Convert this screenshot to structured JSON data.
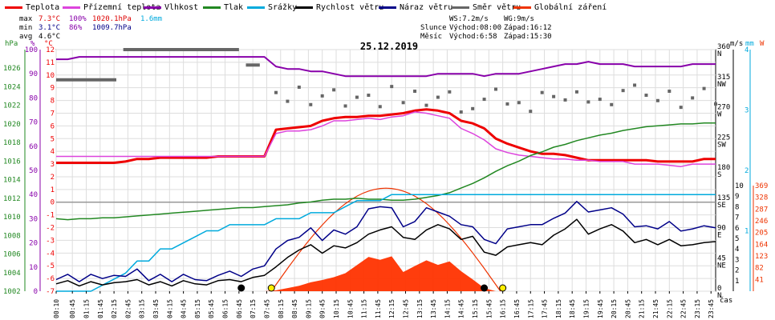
{
  "legend": [
    {
      "label": "Teplota",
      "color": "#ee0000"
    },
    {
      "label": "Přízemní teplota",
      "color": "#dd44dd"
    },
    {
      "label": "Vlhkost",
      "color": "#8800aa"
    },
    {
      "label": "Tlak",
      "color": "#228822"
    },
    {
      "label": "Srážky",
      "color": "#00aadd"
    },
    {
      "label": "Rychlost větru",
      "color": "#000000"
    },
    {
      "label": "Náraz větru",
      "color": "#000088"
    },
    {
      "label": "Směr větru",
      "color": "#666666"
    },
    {
      "label": "Globální záření",
      "color": "#ee3300"
    }
  ],
  "stats": {
    "max_label": "max",
    "max_temp": "7.3°C",
    "max_hum": "100%",
    "max_press": "1020.1hPa",
    "max_rain": "1.6mm",
    "min_label": "min",
    "min_temp": "3.1°C",
    "min_hum": "86%",
    "min_press": "1009.7hPa",
    "avg_label": "avg",
    "avg_temp": "4.6°C"
  },
  "sun": {
    "ws": "WS:7.2m/s",
    "wg": "WG:9m/s",
    "sun_label": "Slunce",
    "sunrise": "Východ:08:00",
    "sunset": "Západ:16:12",
    "moon_label": "Měsíc",
    "moonrise": "Východ:6:58",
    "moonset": "Západ:15:30"
  },
  "chart_data": {
    "type": "line",
    "title": "25.12.2019",
    "xlabel": "čas",
    "x": [
      "00:10",
      "00:35",
      "01:00",
      "01:25",
      "01:50",
      "02:15",
      "02:40",
      "03:05",
      "03:30",
      "03:55",
      "04:20",
      "04:45",
      "05:10",
      "05:35",
      "06:00",
      "06:25",
      "06:50",
      "07:15",
      "07:40",
      "08:05",
      "08:30",
      "08:55",
      "09:20",
      "09:45",
      "10:10",
      "10:35",
      "11:00",
      "11:25",
      "11:50",
      "12:15",
      "12:40",
      "13:05",
      "13:30",
      "13:55",
      "14:20",
      "14:45",
      "15:10",
      "15:35",
      "16:00",
      "16:25",
      "16:50",
      "17:15",
      "17:40",
      "18:05",
      "18:30",
      "18:55",
      "19:20",
      "19:45",
      "20:10",
      "20:35",
      "21:00",
      "21:25",
      "21:50",
      "22:15",
      "22:40",
      "23:05",
      "23:30",
      "23:55"
    ],
    "x_tick_labels": [
      "00:10",
      "00:45",
      "01:15",
      "01:45",
      "02:15",
      "02:45",
      "03:15",
      "03:45",
      "04:15",
      "04:45",
      "05:15",
      "05:45",
      "06:15",
      "06:45",
      "07:15",
      "07:45",
      "08:15",
      "08:45",
      "09:15",
      "09:45",
      "10:15",
      "10:45",
      "11:15",
      "11:45",
      "12:15",
      "12:45",
      "13:15",
      "13:45",
      "14:15",
      "14:45",
      "15:15",
      "15:45",
      "16:15",
      "16:45",
      "17:15",
      "17:45",
      "18:15",
      "18:45",
      "19:15",
      "19:45",
      "20:15",
      "20:45",
      "21:15",
      "21:45",
      "22:15",
      "22:45",
      "23:15",
      "23:45"
    ],
    "axes": {
      "pressure": {
        "unit": "hPa",
        "min": 1002,
        "max": 1028,
        "ticks": [
          1002,
          1004,
          1006,
          1008,
          1010,
          1012,
          1014,
          1016,
          1018,
          1020,
          1022,
          1024,
          1026
        ]
      },
      "humidity": {
        "unit": "%",
        "min": 0,
        "max": 100,
        "ticks": [
          0,
          10,
          20,
          30,
          40,
          50,
          60,
          70,
          80,
          90,
          100
        ]
      },
      "temperature": {
        "unit": "°C",
        "min": -7,
        "max": 12,
        "ticks": [
          -7,
          -6,
          -5,
          -4,
          -3,
          -2,
          -1,
          0,
          1,
          2,
          3,
          4,
          5,
          6,
          7,
          8,
          9,
          10,
          11,
          12
        ]
      },
      "wind_direction": {
        "unit": "",
        "ticks": [
          {
            "v": 0,
            "t": "0"
          },
          {
            "v": 45,
            "t": "45"
          },
          {
            "v": 90,
            "t": "90"
          },
          {
            "v": 135,
            "t": "135"
          },
          {
            "v": 180,
            "t": "180"
          },
          {
            "v": 225,
            "t": "225"
          },
          {
            "v": 270,
            "t": "270"
          },
          {
            "v": 315,
            "t": "315"
          },
          {
            "v": 360,
            "t": "360"
          }
        ],
        "compass": [
          "N",
          "NE",
          "E",
          "SE",
          "S",
          "SW",
          "W",
          "NW",
          "N"
        ]
      },
      "wind_speed": {
        "unit": "m/s",
        "min": 0,
        "max": 10,
        "ticks": [
          1,
          2,
          3,
          4,
          5,
          6,
          7,
          8,
          9,
          10
        ]
      },
      "rain": {
        "unit": "mm",
        "min": 0,
        "max": 4,
        "ticks": [
          1,
          2,
          3,
          4
        ]
      },
      "radiation": {
        "unit": "W",
        "min": 0,
        "max": 369,
        "ticks": [
          41,
          82,
          123,
          164,
          205,
          246,
          287,
          328,
          369
        ]
      }
    },
    "series": [
      {
        "name": "Teplota",
        "color": "#ee0000",
        "axis": "temperature",
        "values": [
          3.1,
          3.1,
          3.1,
          3.1,
          3.1,
          3.1,
          3.2,
          3.4,
          3.4,
          3.5,
          3.5,
          3.5,
          3.5,
          3.5,
          3.6,
          3.6,
          3.6,
          3.6,
          3.6,
          5.7,
          5.8,
          5.9,
          6.0,
          6.4,
          6.6,
          6.7,
          6.7,
          6.8,
          6.8,
          6.9,
          7.0,
          7.2,
          7.3,
          7.2,
          7.0,
          6.4,
          6.2,
          5.8,
          5.0,
          4.6,
          4.3,
          4.0,
          3.8,
          3.8,
          3.7,
          3.5,
          3.3,
          3.3,
          3.3,
          3.3,
          3.3,
          3.3,
          3.2,
          3.2,
          3.2,
          3.2,
          3.4,
          3.4
        ]
      },
      {
        "name": "Přízemní teplota",
        "color": "#dd44dd",
        "axis": "temperature",
        "values": [
          3.6,
          3.6,
          3.6,
          3.6,
          3.6,
          3.6,
          3.6,
          3.6,
          3.6,
          3.6,
          3.6,
          3.6,
          3.6,
          3.6,
          3.6,
          3.6,
          3.6,
          3.6,
          3.6,
          5.4,
          5.6,
          5.6,
          5.7,
          6.0,
          6.4,
          6.4,
          6.5,
          6.6,
          6.5,
          6.7,
          6.8,
          7.1,
          7.0,
          6.8,
          6.6,
          5.8,
          5.4,
          4.9,
          4.2,
          3.9,
          3.7,
          3.6,
          3.5,
          3.4,
          3.4,
          3.3,
          3.3,
          3.2,
          3.2,
          3.2,
          3.0,
          3.0,
          3.0,
          2.9,
          2.8,
          3.0,
          3.0,
          3.0
        ]
      },
      {
        "name": "Vlhkost",
        "color": "#8800aa",
        "axis": "humidity",
        "values": [
          96,
          96,
          97,
          97,
          97,
          97,
          97,
          97,
          97,
          97,
          97,
          97,
          97,
          97,
          97,
          97,
          97,
          97,
          97,
          93,
          92,
          92,
          91,
          91,
          90,
          89,
          89,
          89,
          89,
          89,
          89,
          89,
          89,
          90,
          90,
          90,
          90,
          89,
          90,
          90,
          90,
          91,
          92,
          93,
          94,
          94,
          95,
          94,
          94,
          94,
          93,
          93,
          93,
          93,
          93,
          94,
          94,
          94
        ]
      },
      {
        "name": "Tlak",
        "color": "#228822",
        "axis": "pressure",
        "values": [
          1009.8,
          1009.7,
          1009.8,
          1009.8,
          1009.9,
          1009.9,
          1010.0,
          1010.1,
          1010.2,
          1010.3,
          1010.4,
          1010.5,
          1010.6,
          1010.7,
          1010.8,
          1010.9,
          1011.0,
          1011.0,
          1011.1,
          1011.2,
          1011.3,
          1011.5,
          1011.6,
          1011.8,
          1011.9,
          1011.9,
          1012.0,
          1011.9,
          1011.9,
          1011.8,
          1011.8,
          1011.9,
          1012.1,
          1012.3,
          1012.6,
          1013.1,
          1013.6,
          1014.2,
          1014.9,
          1015.5,
          1016.0,
          1016.6,
          1017.0,
          1017.5,
          1017.8,
          1018.2,
          1018.5,
          1018.8,
          1019.0,
          1019.3,
          1019.5,
          1019.7,
          1019.8,
          1019.9,
          1020.0,
          1020.0,
          1020.1,
          1020.1
        ]
      },
      {
        "name": "Srážky",
        "color": "#00aadd",
        "axis": "rain",
        "values": [
          0,
          0,
          0,
          0,
          0.1,
          0.2,
          0.3,
          0.5,
          0.5,
          0.7,
          0.7,
          0.8,
          0.9,
          1.0,
          1.0,
          1.1,
          1.1,
          1.1,
          1.1,
          1.2,
          1.2,
          1.2,
          1.3,
          1.3,
          1.3,
          1.4,
          1.5,
          1.5,
          1.5,
          1.6,
          1.6,
          1.6,
          1.6,
          1.6,
          1.6,
          1.6,
          1.6,
          1.6,
          1.6,
          1.6,
          1.6,
          1.6,
          1.6,
          1.6,
          1.6,
          1.6,
          1.6,
          1.6,
          1.6,
          1.6,
          1.6,
          1.6,
          1.6,
          1.6,
          1.6,
          1.6,
          1.6,
          1.6
        ]
      },
      {
        "name": "Rychlost větru",
        "color": "#000000",
        "axis": "wind_speed",
        "values": [
          0.7,
          1.0,
          0.5,
          0.9,
          0.6,
          0.8,
          0.9,
          1.1,
          0.6,
          0.9,
          0.5,
          1.0,
          0.7,
          0.6,
          1.0,
          1.1,
          0.9,
          1.3,
          1.5,
          2.3,
          3.2,
          3.9,
          4.4,
          3.6,
          4.3,
          4.1,
          4.6,
          5.4,
          5.8,
          6.1,
          5.1,
          4.9,
          5.8,
          6.3,
          5.9,
          4.9,
          5.2,
          3.7,
          3.4,
          4.2,
          4.4,
          4.6,
          4.4,
          5.3,
          5.9,
          6.8,
          5.4,
          5.9,
          6.3,
          5.7,
          4.6,
          4.9,
          4.4,
          4.9,
          4.3,
          4.4,
          4.6,
          4.7
        ]
      },
      {
        "name": "Náraz větru",
        "color": "#000088",
        "axis": "wind_speed",
        "values": [
          1.1,
          1.6,
          0.9,
          1.6,
          1.2,
          1.5,
          1.4,
          2.1,
          1.0,
          1.6,
          0.9,
          1.6,
          1.1,
          1.0,
          1.5,
          1.9,
          1.4,
          2.1,
          2.4,
          4.0,
          4.8,
          5.1,
          6.0,
          4.8,
          5.8,
          5.4,
          6.1,
          7.8,
          8.0,
          7.9,
          6.1,
          6.6,
          7.9,
          7.5,
          7.1,
          6.3,
          6.1,
          4.9,
          4.5,
          5.9,
          6.1,
          6.3,
          6.3,
          6.9,
          7.4,
          8.5,
          7.5,
          7.7,
          7.9,
          7.3,
          6.1,
          6.2,
          5.9,
          6.6,
          5.7,
          5.9,
          6.2,
          6.0
        ]
      },
      {
        "name": "Globální záření",
        "color": "#ee3300",
        "axis": "radiation",
        "values": [
          0,
          0,
          0,
          0,
          0,
          0,
          0,
          0,
          0,
          0,
          0,
          0,
          0,
          0,
          0,
          0,
          0,
          0,
          0,
          3,
          11,
          19,
          31,
          39,
          49,
          63,
          91,
          120,
          110,
          122,
          67,
          88,
          108,
          92,
          104,
          70,
          41,
          11,
          0,
          0,
          0,
          0,
          0,
          0,
          0,
          0,
          0,
          0,
          0,
          0,
          0,
          0,
          0,
          0,
          0,
          0,
          0,
          0
        ]
      },
      {
        "name": "Směr větru",
        "color": "#666666",
        "axis": "wind_direction",
        "type": "scatter",
        "values": [
          null,
          null,
          null,
          null,
          null,
          null,
          null,
          null,
          null,
          null,
          null,
          null,
          null,
          null,
          null,
          null,
          null,
          null,
          null,
          296,
          283,
          304,
          278,
          291,
          300,
          276,
          289,
          292,
          275,
          305,
          281,
          298,
          277,
          289,
          297,
          267,
          272,
          286,
          301,
          279,
          281,
          268,
          296,
          290,
          285,
          297,
          282,
          286,
          278,
          299,
          307,
          292,
          284,
          298,
          274,
          288,
          302,
          279
        ]
      }
    ],
    "wind_direction_bars": [
      {
        "from": "00:10",
        "to": "02:20",
        "value": 315
      },
      {
        "from": "02:35",
        "to": "06:45",
        "value": 360
      },
      {
        "from": "07:00",
        "to": "07:30",
        "value": 337
      }
    ],
    "clear_sky_curve": {
      "from": "07:55",
      "to": "16:10",
      "peak": 360
    },
    "markers": [
      {
        "time": "06:50",
        "label": "Měsíc východ",
        "color": "#000000"
      },
      {
        "time": "07:55",
        "label": "Slunce východ",
        "color": "#ffee00"
      },
      {
        "time": "15:35",
        "label": "Měsíc západ",
        "color": "#000000"
      },
      {
        "time": "16:15",
        "label": "Slunce západ",
        "color": "#ffee00"
      }
    ],
    "reference_line": {
      "axis": "temperature",
      "value": 0
    }
  }
}
